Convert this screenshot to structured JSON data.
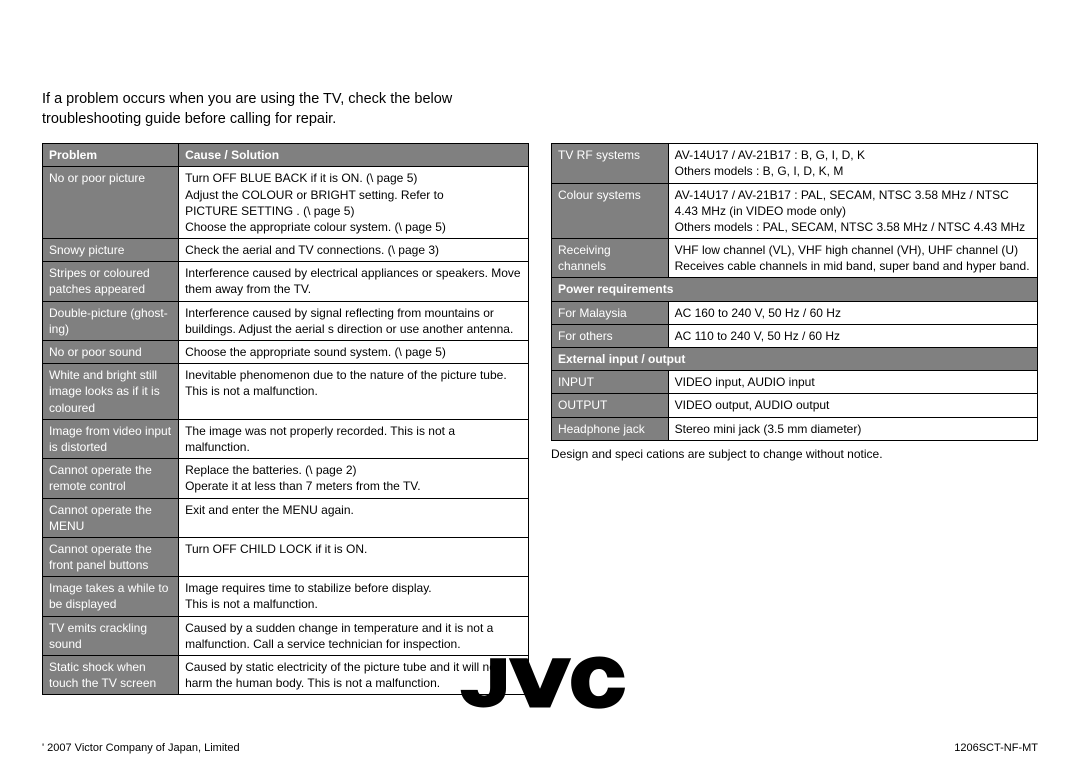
{
  "intro": "If a problem occurs when you are using the TV, check the below troubleshooting guide before calling for repair.",
  "troubleshoot": {
    "headers": {
      "problem": "Problem",
      "solution": "Cause / Solution"
    },
    "rows": [
      {
        "problem": "No or poor picture",
        "solution": "Turn OFF BLUE BACK if it is ON. (\\  page 5)\nAdjust the COLOUR or BRIGHT setting. Refer to\n  PICTURE SETTING . (\\  page 5)\nChoose the appropriate colour system. (\\  page 5)"
      },
      {
        "problem": "Snowy picture",
        "solution": "Check the aerial and TV connections. (\\  page 3)"
      },
      {
        "problem": "Stripes or coloured patches appeared",
        "solution": "Interference caused by electrical appliances or speakers. Move them away from the TV."
      },
      {
        "problem": "Double-picture (ghost-ing)",
        "solution": "Interference caused by signal reflecting from mountains or buildings. Adjust the aerial s direction or use another antenna."
      },
      {
        "problem": "No or poor sound",
        "solution": "Choose the appropriate sound system. (\\  page 5)"
      },
      {
        "problem": "White and bright still image looks as if it is coloured",
        "solution": "Inevitable phenomenon due to the nature of the picture tube. This is not a malfunction."
      },
      {
        "problem": "Image from video input is distorted",
        "solution": "The image was not properly recorded. This is not a malfunction."
      },
      {
        "problem": "Cannot operate the remote control",
        "solution": "Replace the batteries. (\\  page 2)\nOperate it at less than 7 meters from the TV."
      },
      {
        "problem": "Cannot operate the MENU",
        "solution": "Exit and enter the MENU again."
      },
      {
        "problem": "Cannot operate the front panel buttons",
        "solution": "Turn OFF CHILD LOCK if it is ON."
      },
      {
        "problem": "Image takes a while to be displayed",
        "solution": "Image requires time to stabilize before display.\nThis is not a malfunction."
      },
      {
        "problem": "TV emits crackling sound",
        "solution": "Caused by a sudden change in temperature and it is not a malfunction. Call a service technician for inspection."
      },
      {
        "problem": "Static shock when touch the TV screen",
        "solution": "Caused by static electricity of the picture tube and it will not harm the human body. This is not a malfunction."
      }
    ]
  },
  "specs": {
    "rows": [
      {
        "label": "TV RF systems",
        "value": "AV-14U17 / AV-21B17 : B, G, I, D, K\nOthers models : B, G, I, D, K, M"
      },
      {
        "label": "Colour systems",
        "value": "AV-14U17 / AV-21B17 : PAL, SECAM, NTSC 3.58 MHz / NTSC 4.43 MHz (in VIDEO mode only)\nOthers models : PAL, SECAM, NTSC 3.58 MHz / NTSC 4.43 MHz"
      },
      {
        "label": "Receiving channels",
        "value": "VHF low channel (VL), VHF high channel (VH), UHF channel (U)\nReceives cable channels in mid band, super band and hyper band."
      }
    ],
    "power_header": "Power requirements",
    "power_rows": [
      {
        "label": "For Malaysia",
        "value": "AC 160 to 240 V, 50 Hz / 60 Hz"
      },
      {
        "label": "For others",
        "value": "AC 110 to 240 V, 50 Hz / 60 Hz"
      }
    ],
    "io_header": "External input / output",
    "io_rows": [
      {
        "label": "INPUT",
        "value": "VIDEO input, AUDIO input"
      },
      {
        "label": "OUTPUT",
        "value": "VIDEO output, AUDIO output"
      },
      {
        "label": "Headphone jack",
        "value": "Stereo mini jack (3.5 mm diameter)"
      }
    ],
    "note": "Design and speci cations are subject to change without notice."
  },
  "footer": {
    "copyright": "' 2007 Victor Company of Japan, Limited",
    "code": "1206SCT-NF-MT"
  },
  "logo": {
    "fill": "#000000",
    "width": 170,
    "height": 58
  }
}
